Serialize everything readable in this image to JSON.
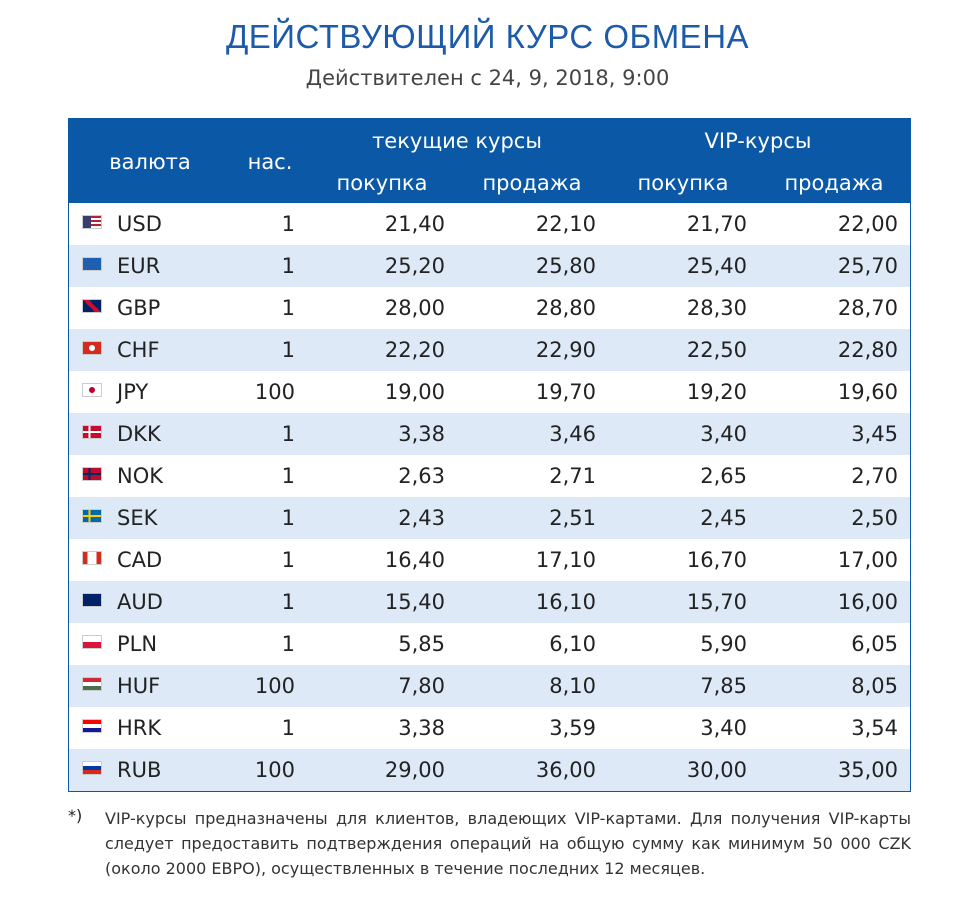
{
  "header": {
    "title": "ДЕЙСТВУЮЩИЙ КУРС ОБМЕНА",
    "subtitle": "Действителен с 24, 9, 2018, 9:00"
  },
  "table": {
    "columns": {
      "currency": "валюта",
      "units": "нас.",
      "current": "текущие курсы",
      "vip": "VIP-курсы",
      "buy": "покупка",
      "sell": "продажа"
    },
    "rows": [
      [
        "USD",
        "1",
        "21,40",
        "22,10",
        "21,70",
        "22,00"
      ],
      [
        "EUR",
        "1",
        "25,20",
        "25,80",
        "25,40",
        "25,70"
      ],
      [
        "GBP",
        "1",
        "28,00",
        "28,80",
        "28,30",
        "28,70"
      ],
      [
        "CHF",
        "1",
        "22,20",
        "22,90",
        "22,50",
        "22,80"
      ],
      [
        "JPY",
        "100",
        "19,00",
        "19,70",
        "19,20",
        "19,60"
      ],
      [
        "DKK",
        "1",
        "3,38",
        "3,46",
        "3,40",
        "3,45"
      ],
      [
        "NOK",
        "1",
        "2,63",
        "2,71",
        "2,65",
        "2,70"
      ],
      [
        "SEK",
        "1",
        "2,43",
        "2,51",
        "2,45",
        "2,50"
      ],
      [
        "CAD",
        "1",
        "16,40",
        "17,10",
        "16,70",
        "17,00"
      ],
      [
        "AUD",
        "1",
        "15,40",
        "16,10",
        "15,70",
        "16,00"
      ],
      [
        "PLN",
        "1",
        "5,85",
        "6,10",
        "5,90",
        "6,05"
      ],
      [
        "HUF",
        "100",
        "7,80",
        "8,10",
        "7,85",
        "8,05"
      ],
      [
        "HRK",
        "1",
        "3,38",
        "3,59",
        "3,40",
        "3,54"
      ],
      [
        "RUB",
        "100",
        "29,00",
        "36,00",
        "30,00",
        "35,00"
      ]
    ]
  },
  "footnote": {
    "marker": "*)",
    "text": "VIP-курсы предназначены для клиентов, владеющих VIP-картами. Для получения VIP-карты следует предоставить подтверждения операций на общую сумму как минимум 50 000 CZK (около 2000 ЕВРО), осуществленных в течение последних 12 месяцев."
  }
}
